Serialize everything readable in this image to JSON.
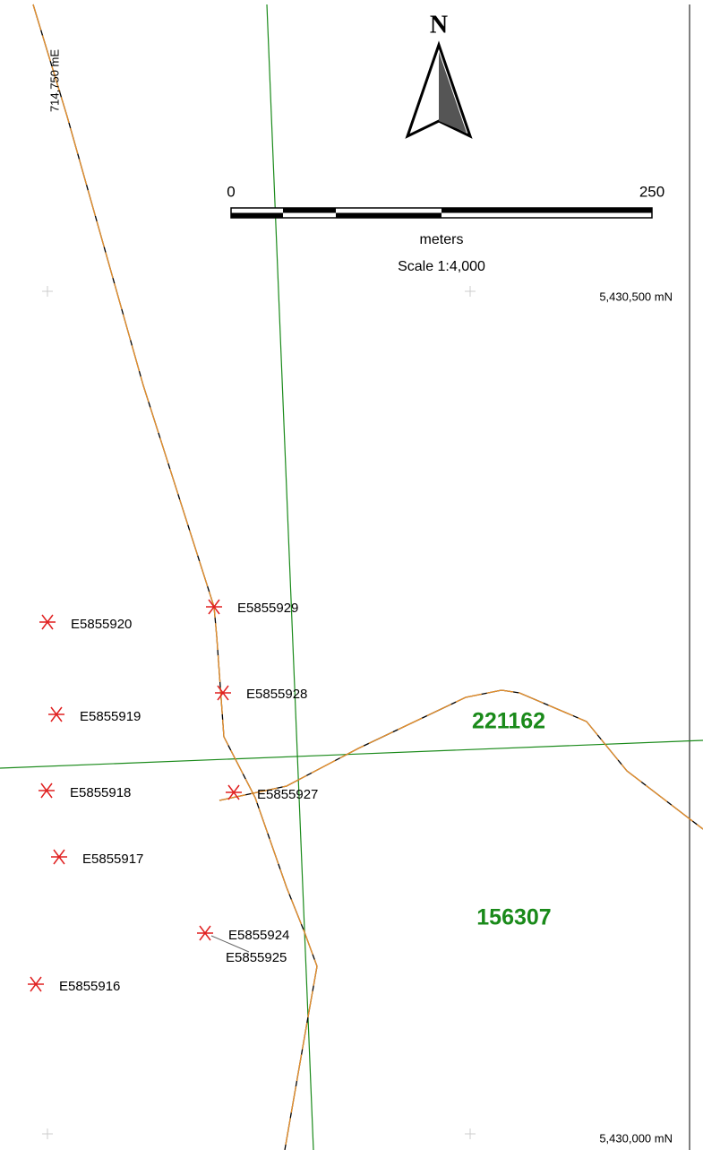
{
  "north": "N",
  "scale": {
    "start": "0",
    "end": "250",
    "unit": "meters",
    "ratio": "Scale 1:4,000"
  },
  "grid_labels": {
    "easting": "714,750 mE",
    "northing_top": "5,430,500 mN",
    "northing_bottom": "5,430,000 mN"
  },
  "parcels": [
    "221162",
    "156307"
  ],
  "points": [
    "E5855929",
    "E5855920",
    "E5855928",
    "E5855919",
    "E5855918",
    "E5855927",
    "E5855917",
    "E5855924",
    "E5855925",
    "E5855916"
  ]
}
